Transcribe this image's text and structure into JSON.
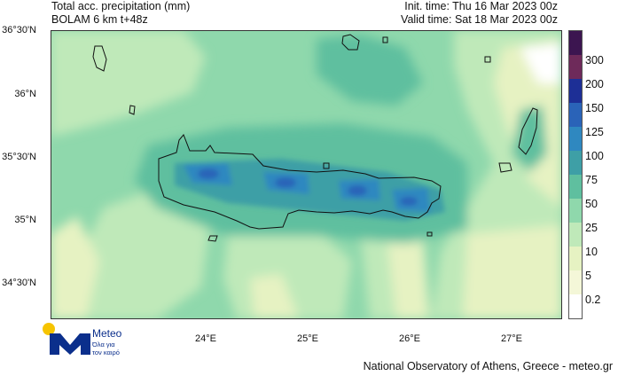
{
  "header": {
    "line1_left": "Total acc. precipitation (mm)",
    "line2_left": "BOLAM 6 km t+48z",
    "line1_right": "Init. time: Thu 16 Mar 2023 00z",
    "line2_right": "Valid time: Sat 18 Mar 2023 00z"
  },
  "axes": {
    "lat_labels": [
      "36°30'N",
      "36°N",
      "35°30'N",
      "35°N",
      "34°30'N"
    ],
    "lon_labels": [
      "24°E",
      "25°E",
      "26°E",
      "27°E"
    ]
  },
  "legend": {
    "levels": [
      "0.2",
      "5",
      "10",
      "25",
      "50",
      "75",
      "100",
      "125",
      "150",
      "200",
      "300"
    ],
    "colors": [
      "#ffffff",
      "#f4f7d8",
      "#e6f2c2",
      "#bfe9b9",
      "#8fd8ac",
      "#5fbf9f",
      "#3e9fa6",
      "#2f88c0",
      "#2a63b8",
      "#1d2f96",
      "#6e2a5a",
      "#3c1550"
    ]
  },
  "logo": {
    "title": "Meteo",
    "subtitle_line1": "Όλα για",
    "subtitle_line2": "τον καιρό"
  },
  "footer": "National Observatory of Athens, Greece - meteo.gr"
}
